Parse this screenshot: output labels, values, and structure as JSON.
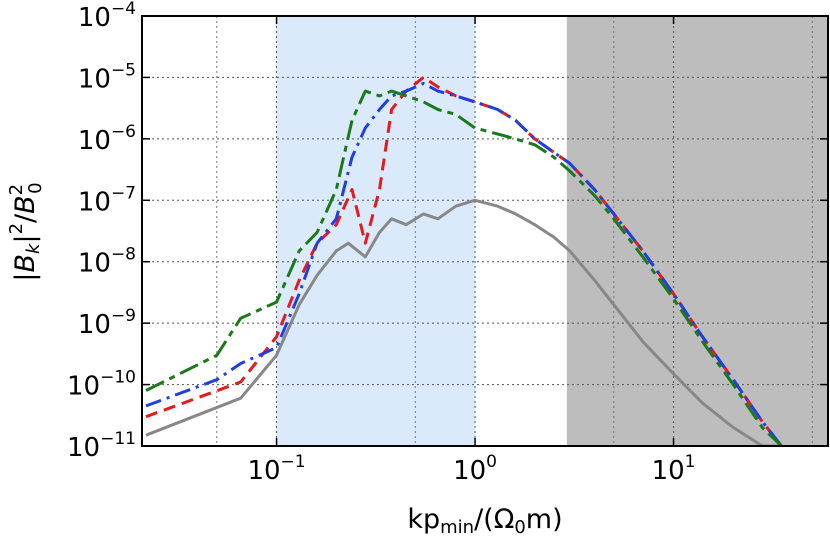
{
  "chart_data": {
    "type": "line",
    "title": "",
    "xscale": "log",
    "yscale": "log",
    "xlim": [
      0.021,
      60
    ],
    "ylim": [
      1e-11,
      0.0001
    ],
    "xlabel": {
      "main": "kp",
      "sub": "min",
      "tail_open": "/(Ω",
      "tail_sub": "0",
      "tail_close": "m)"
    },
    "ylabel": {
      "bar_open": "|",
      "b": "B",
      "k": "k",
      "bar_close": "|",
      "sup2a": "2",
      "slash": "/",
      "b0": "B",
      "sub0": "0",
      "sup2b": "2"
    },
    "x_ticks": [
      {
        "value": 0.1,
        "base": "10",
        "exp": "−1"
      },
      {
        "value": 1,
        "base": "10",
        "exp": "0"
      },
      {
        "value": 10,
        "base": "10",
        "exp": "1"
      }
    ],
    "y_ticks": [
      {
        "value": 1e-11,
        "base": "10",
        "exp": "−11"
      },
      {
        "value": 1e-10,
        "base": "10",
        "exp": "−10"
      },
      {
        "value": 1e-09,
        "base": "10",
        "exp": "−9"
      },
      {
        "value": 1e-08,
        "base": "10",
        "exp": "−8"
      },
      {
        "value": 1e-07,
        "base": "10",
        "exp": "−7"
      },
      {
        "value": 1e-06,
        "base": "10",
        "exp": "−6"
      },
      {
        "value": 1e-05,
        "base": "10",
        "exp": "−5"
      },
      {
        "value": 0.0001,
        "base": "10",
        "exp": "−4"
      }
    ],
    "grid": true,
    "shaded_regions": [
      {
        "x_from": 0.1,
        "x_to": 1.0,
        "color": "#dbeafb"
      },
      {
        "x_from": 2.9,
        "x_to": 60,
        "color": "#bdbdbd"
      }
    ],
    "series": [
      {
        "name": "gray",
        "color": "#888888",
        "dash": "",
        "width": 3,
        "x": [
          0.022,
          0.066,
          0.1,
          0.13,
          0.16,
          0.2,
          0.23,
          0.28,
          0.33,
          0.38,
          0.45,
          0.55,
          0.65,
          0.8,
          1.0,
          1.3,
          1.6,
          2.0,
          2.5,
          3.0,
          4.0,
          5.0,
          7.0,
          10.0,
          14.0,
          20.0,
          28.0,
          35.0
        ],
        "y": [
          1.5e-11,
          6e-11,
          3e-10,
          2e-09,
          6e-09,
          1.5e-08,
          2e-08,
          1.2e-08,
          3e-08,
          5e-08,
          4e-08,
          6e-08,
          5e-08,
          8e-08,
          1e-07,
          8e-08,
          6e-08,
          4e-08,
          2.5e-08,
          1.5e-08,
          5e-09,
          2e-09,
          5e-10,
          1.5e-10,
          5e-11,
          2e-11,
          1e-11,
          1e-11
        ]
      },
      {
        "name": "red",
        "color": "#e41a1c",
        "dash": "12 7",
        "width": 3,
        "x": [
          0.022,
          0.066,
          0.1,
          0.13,
          0.16,
          0.2,
          0.24,
          0.28,
          0.33,
          0.38,
          0.45,
          0.55,
          0.65,
          0.8,
          1.0,
          1.3,
          1.6,
          2.0,
          2.5,
          3.0,
          4.0,
          5.0,
          7.0,
          10.0,
          14.0,
          20.0,
          28.0,
          35.0
        ],
        "y": [
          3e-11,
          1.1e-10,
          6e-10,
          5e-09,
          2e-08,
          4e-08,
          1.5e-07,
          2e-08,
          1.5e-07,
          3e-06,
          6e-06,
          1e-05,
          7e-06,
          5e-06,
          4e-06,
          3e-06,
          2e-06,
          1e-06,
          6e-07,
          4e-07,
          1.5e-07,
          6e-08,
          1.5e-08,
          3e-09,
          6e-10,
          1.2e-10,
          2.5e-11,
          1e-11
        ]
      },
      {
        "name": "blue",
        "color": "#1f3fe0",
        "dash": "16 6 3 6",
        "width": 3,
        "x": [
          0.022,
          0.05,
          0.066,
          0.1,
          0.13,
          0.16,
          0.2,
          0.24,
          0.28,
          0.33,
          0.38,
          0.45,
          0.55,
          0.65,
          0.8,
          1.0,
          1.3,
          1.6,
          2.0,
          2.5,
          3.0,
          4.0,
          5.0,
          7.0,
          10.0,
          14.0,
          20.0,
          28.0,
          35.0
        ],
        "y": [
          4.5e-11,
          1.2e-10,
          2.2e-10,
          4e-10,
          3e-09,
          2e-08,
          5e-08,
          5e-07,
          1.5e-06,
          3e-06,
          5e-06,
          6e-06,
          8e-06,
          6e-06,
          5e-06,
          4e-06,
          3e-06,
          2e-06,
          1e-06,
          6e-07,
          4e-07,
          1.5e-07,
          6e-08,
          1.5e-08,
          3e-09,
          6e-10,
          1.2e-10,
          2.5e-11,
          1e-11
        ]
      },
      {
        "name": "green",
        "color": "#1a7a1a",
        "dash": "20 6 6 6",
        "width": 3,
        "x": [
          0.022,
          0.05,
          0.066,
          0.1,
          0.13,
          0.16,
          0.2,
          0.24,
          0.28,
          0.33,
          0.38,
          0.45,
          0.55,
          0.65,
          0.8,
          1.0,
          1.3,
          1.6,
          2.0,
          2.5,
          3.0,
          4.0,
          5.0,
          7.0,
          10.0,
          14.0,
          20.0,
          28.0,
          35.0
        ],
        "y": [
          8e-11,
          3e-10,
          1.2e-09,
          2.2e-09,
          1.5e-08,
          3e-08,
          1.5e-07,
          2e-06,
          6e-06,
          5e-06,
          6e-06,
          5e-06,
          4e-06,
          3e-06,
          2.5e-06,
          1.5e-06,
          1.2e-06,
          1e-06,
          8e-07,
          5e-07,
          3e-07,
          1.2e-07,
          5e-08,
          1.2e-08,
          2.5e-09,
          5e-10,
          1e-10,
          2e-11,
          1e-11
        ]
      }
    ]
  }
}
